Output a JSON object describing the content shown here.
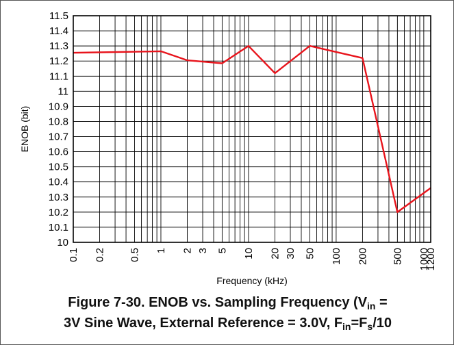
{
  "chart_data": {
    "type": "line",
    "title": "",
    "xlabel": "Frequency (kHz)",
    "ylabel": "ENOB (bit)",
    "xscale": "log",
    "xlim": [
      0.1,
      1200
    ],
    "ylim": [
      10,
      11.5
    ],
    "grid": true,
    "legend": "none",
    "x_ticks": [
      {
        "v": 0.1,
        "label": "0.1"
      },
      {
        "v": 0.2,
        "label": "0.2"
      },
      {
        "v": 0.5,
        "label": "0.5"
      },
      {
        "v": 1,
        "label": "1"
      },
      {
        "v": 2,
        "label": "2"
      },
      {
        "v": 3,
        "label": "3"
      },
      {
        "v": 5,
        "label": "5"
      },
      {
        "v": 10,
        "label": "10"
      },
      {
        "v": 20,
        "label": "20"
      },
      {
        "v": 30,
        "label": "30"
      },
      {
        "v": 50,
        "label": "50"
      },
      {
        "v": 100,
        "label": "100"
      },
      {
        "v": 200,
        "label": "200"
      },
      {
        "v": 500,
        "label": "500"
      },
      {
        "v": 1000,
        "label": "1000"
      },
      {
        "v": 1200,
        "label": "1200"
      }
    ],
    "y_ticks": [
      "10",
      "10.1",
      "10.2",
      "10.3",
      "10.4",
      "10.5",
      "10.6",
      "10.7",
      "10.8",
      "10.9",
      "11",
      "11.1",
      "11.2",
      "11.3",
      "11.4",
      "11.5"
    ],
    "series": [
      {
        "color": "#e8141c",
        "x": [
          0.1,
          1,
          2,
          5,
          10,
          20,
          50,
          200,
          500,
          1200
        ],
        "y": [
          11.255,
          11.265,
          11.205,
          11.185,
          11.3,
          11.12,
          11.3,
          11.22,
          10.2,
          10.36
        ]
      }
    ]
  },
  "caption": {
    "line1_a": "Figure 7-30. ENOB vs. Sampling Frequency (V",
    "line1_sub": "in",
    "line1_b": " =",
    "line2_a": "3V Sine Wave, External Reference = 3.0V, F",
    "line2_sub1": "in",
    "line2_b": "=F",
    "line2_sub2": "s",
    "line2_c": "/10"
  }
}
